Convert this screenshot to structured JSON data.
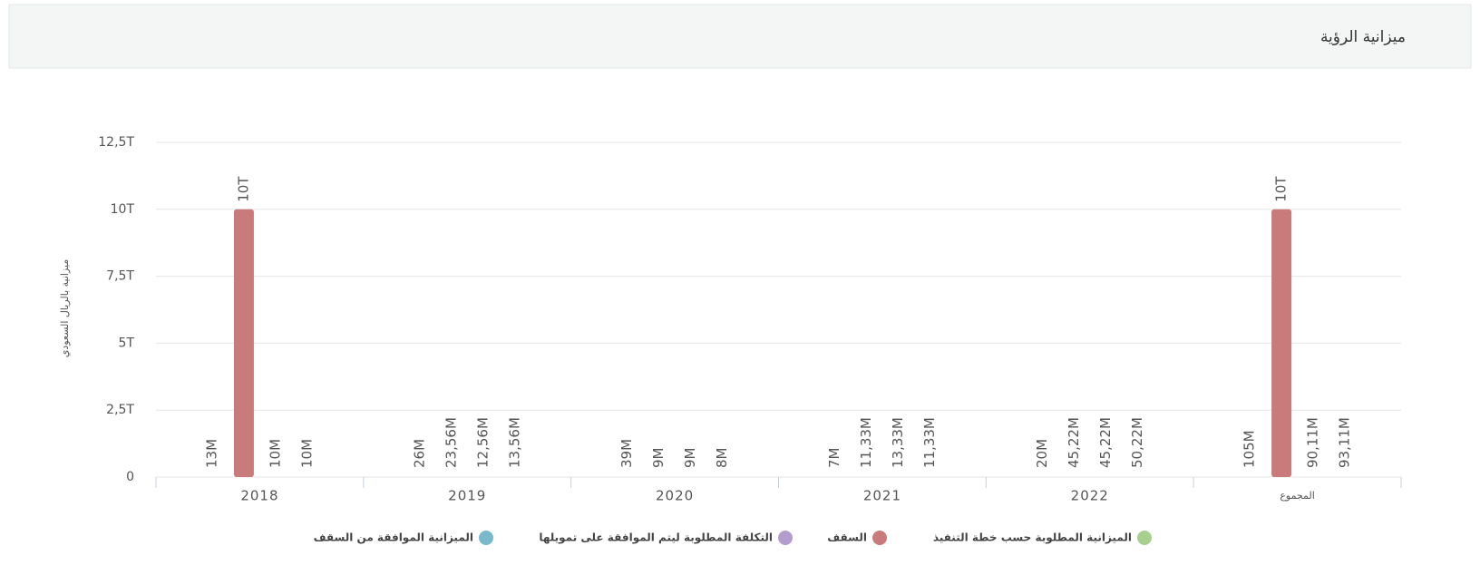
{
  "header": {
    "title": "ميزانية الرؤية"
  },
  "chart_data": {
    "type": "bar",
    "y_label": "ميزانية بالريال السعودي",
    "categories": [
      "2018",
      "2019",
      "2020",
      "2021",
      "2022",
      "المجموع"
    ],
    "series": [
      {
        "name": "الميزانية المطلوبة حسب خطة التنفيذ",
        "color": "#a9cf8f",
        "values": [
          13000000,
          26000000,
          39000000,
          7000000,
          20000000,
          105000000
        ],
        "value_labels": [
          "13M",
          "26M",
          "39M",
          "7M",
          "20M",
          "105M"
        ]
      },
      {
        "name": "السقف",
        "color": "#c97b7b",
        "values": [
          10000000000000,
          23560000,
          9000000,
          11330000,
          45220000,
          10000000000000
        ],
        "value_labels": [
          "10T",
          "23,56M",
          "9M",
          "11,33M",
          "45,22M",
          "10T"
        ]
      },
      {
        "name": "التكلفة المطلوبة ليتم الموافقة على تمويلها",
        "color": "#b39dcc",
        "values": [
          10000000,
          12560000,
          9000000,
          13330000,
          45220000,
          90110000
        ],
        "value_labels": [
          "10M",
          "12,56M",
          "9M",
          "13,33M",
          "45,22M",
          "90,11M"
        ]
      },
      {
        "name": "الميزانية الموافقة من السقف",
        "color": "#7ab8cc",
        "values": [
          10000000,
          13560000,
          8000000,
          11330000,
          50220000,
          93110000
        ],
        "value_labels": [
          "10M",
          "13,56M",
          "8M",
          "11,33M",
          "50,22M",
          "93,11M"
        ]
      }
    ],
    "ylim": [
      0,
      12500000000000
    ],
    "yticks": [
      0,
      {
        "value": 2500000000000,
        "label": "2,5T"
      },
      {
        "value": 5000000000000,
        "label": "5T"
      },
      {
        "value": 7500000000000,
        "label": "7,5T"
      },
      {
        "value": 10000000000000,
        "label": "10T"
      },
      {
        "value": 12500000000000,
        "label": "12,5T"
      }
    ],
    "grid": true
  }
}
